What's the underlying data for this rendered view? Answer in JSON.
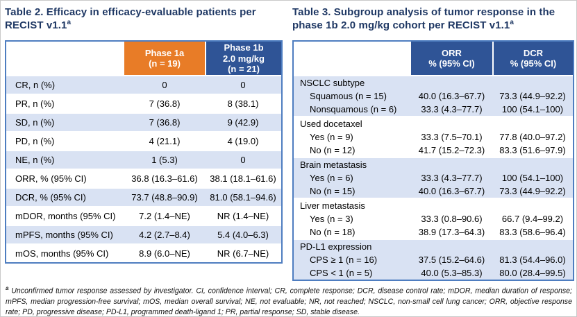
{
  "colors": {
    "title_navy": "#1F3864",
    "header_orange": "#E87C27",
    "header_blue": "#2F5496",
    "row_stripe_blue": "#D9E2F3",
    "table_border_blue": "#4E7DC0"
  },
  "table2": {
    "title": "Table 2. Efficacy in efficacy-evaluable patients per RECIST v1.1",
    "title_sup": "a",
    "header": {
      "col_phase1a": "Phase 1a\n(n = 19)",
      "col_phase1b": "Phase 1b\n2.0 mg/kg\n(n = 21)"
    },
    "rows": [
      {
        "label": "CR, n (%)",
        "p1a": "0",
        "p1b": "0"
      },
      {
        "label": "PR, n (%)",
        "p1a": "7 (36.8)",
        "p1b": "8 (38.1)"
      },
      {
        "label": "SD, n (%)",
        "p1a": "7 (36.8)",
        "p1b": "9 (42.9)"
      },
      {
        "label": "PD, n (%)",
        "p1a": "4 (21.1)",
        "p1b": "4 (19.0)"
      },
      {
        "label": "NE, n (%)",
        "p1a": "1 (5.3)",
        "p1b": "0"
      },
      {
        "label": "ORR, % (95% CI)",
        "p1a": "36.8 (16.3–61.6)",
        "p1b": "38.1 (18.1–61.6)"
      },
      {
        "label": "DCR, % (95% CI)",
        "p1a": "73.7 (48.8–90.9)",
        "p1b": "81.0 (58.1–94.6)"
      },
      {
        "label": "mDOR, months (95% CI)",
        "p1a": "7.2 (1.4–NE)",
        "p1b": "NR (1.4–NE)"
      },
      {
        "label": "mPFS, months (95% CI)",
        "p1a": "4.2 (2.7–8.4)",
        "p1b": "5.4 (4.0–6.3)"
      },
      {
        "label": "mOS, months (95% CI)",
        "p1a": "8.9 (6.0–NE)",
        "p1b": "NR (6.7–NE)"
      }
    ]
  },
  "table3": {
    "title": "Table 3. Subgroup analysis of tumor response in the phase 1b 2.0 mg/kg cohort per RECIST v1.1",
    "title_sup": "a",
    "header": {
      "col_orr": "ORR\n% (95% CI)",
      "col_dcr": "DCR\n% (95% CI)"
    },
    "groups": [
      {
        "label": "NSCLC subtype",
        "rows": [
          {
            "label": "Squamous (n = 15)",
            "orr": "40.0 (16.3–67.7)",
            "dcr": "73.3 (44.9–92.2)"
          },
          {
            "label": "Nonsquamous (n = 6)",
            "orr": "33.3 (4.3–77.7)",
            "dcr": "100 (54.1–100)"
          }
        ]
      },
      {
        "label": "Used docetaxel",
        "rows": [
          {
            "label": "Yes (n = 9)",
            "orr": "33.3 (7.5–70.1)",
            "dcr": "77.8 (40.0–97.2)"
          },
          {
            "label": "No (n = 12)",
            "orr": "41.7 (15.2–72.3)",
            "dcr": "83.3 (51.6–97.9)"
          }
        ]
      },
      {
        "label": "Brain metastasis",
        "rows": [
          {
            "label": "Yes (n = 6)",
            "orr": "33.3 (4.3–77.7)",
            "dcr": "100 (54.1–100)"
          },
          {
            "label": "No (n = 15)",
            "orr": "40.0 (16.3–67.7)",
            "dcr": "73.3 (44.9–92.2)"
          }
        ]
      },
      {
        "label": "Liver metastasis",
        "rows": [
          {
            "label": "Yes (n = 3)",
            "orr": "33.3 (0.8–90.6)",
            "dcr": "66.7 (9.4–99.2)"
          },
          {
            "label": "No (n = 18)",
            "orr": "38.9 (17.3–64.3)",
            "dcr": "83.3 (58.6–96.4)"
          }
        ]
      },
      {
        "label": "PD-L1 expression",
        "rows": [
          {
            "label": "CPS ≥ 1 (n = 16)",
            "orr": "37.5 (15.2–64.6)",
            "dcr": "81.3 (54.4–96.0)"
          },
          {
            "label": "CPS < 1 (n = 5)",
            "orr": "40.0 (5.3–85.3)",
            "dcr": "80.0 (28.4–99.5)"
          }
        ]
      }
    ]
  },
  "footnote": {
    "sup": "a",
    "text": "Unconfirmed tumor response assessed by investigator. CI, confidence interval; CR, complete response; DCR, disease control rate; mDOR, median duration of response; mPFS, median progression-free survival; mOS, median overall survival; NE, not evaluable; NR, not reached; NSCLC, non-small cell lung cancer; ORR, objective response rate; PD, progressive disease; PD-L1, programmed death-ligand 1; PR, partial response; SD, stable disease."
  }
}
